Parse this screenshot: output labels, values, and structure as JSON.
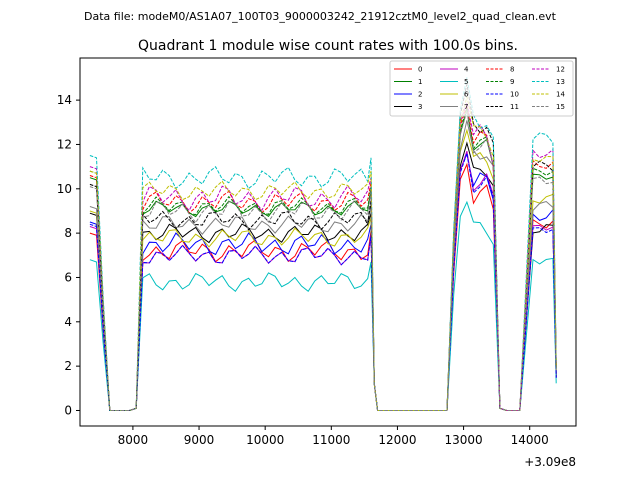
{
  "chart_data": {
    "type": "line",
    "suptitle": "Data file: modeM0/AS1A07_100T03_9000003242_21912cztM0_level2_quad_clean.evt",
    "title": "Quadrant 1 module wise count rates with 100.0s bins.",
    "xlabel": "",
    "ylabel": "",
    "x_offset_label": "+3.09e8",
    "xlim": [
      7200,
      14700
    ],
    "ylim": [
      -0.7,
      15.9
    ],
    "x_ticks": [
      8000,
      9000,
      10000,
      11000,
      12000,
      13000,
      14000
    ],
    "y_ticks": [
      0,
      2,
      4,
      6,
      8,
      10,
      12,
      14
    ],
    "grid": false,
    "legend_position": "top-right",
    "legend_columns": 4,
    "x": [
      7350,
      7450,
      7550,
      7650,
      7750,
      7850,
      7950,
      8050,
      8150,
      8250,
      8350,
      8450,
      8550,
      8650,
      8750,
      8850,
      8950,
      9050,
      9150,
      9250,
      9350,
      9450,
      9550,
      9650,
      9750,
      9850,
      9950,
      10050,
      10150,
      10250,
      10350,
      10450,
      10550,
      10650,
      10750,
      10850,
      10950,
      11050,
      11150,
      11250,
      11350,
      11450,
      11550,
      11600,
      11650,
      11700,
      11750,
      11850,
      11950,
      12050,
      12150,
      12250,
      12350,
      12450,
      12550,
      12650,
      12750,
      12850,
      12950,
      13050,
      13150,
      13250,
      13350,
      13450,
      13550,
      13650,
      13750,
      13850,
      13950,
      14050,
      14150,
      14250,
      14350,
      14400
    ],
    "series": [
      {
        "name": "0",
        "color": "#ff0000",
        "dash": "solid",
        "level": 7.2,
        "amp": 0.35,
        "start": 8.0,
        "peak": 11.2,
        "end": 8.5
      },
      {
        "name": "1",
        "color": "#008000",
        "dash": "solid",
        "level": 9.1,
        "amp": 0.25,
        "start": 10.5,
        "peak": 13.5,
        "end": 10.5
      },
      {
        "name": "2",
        "color": "#0000ff",
        "dash": "solid",
        "level": 7.5,
        "amp": 0.35,
        "start": 8.5,
        "peak": 11.8,
        "end": 8.8
      },
      {
        "name": "3",
        "color": "#000000",
        "dash": "solid",
        "level": 8.0,
        "amp": 0.3,
        "start": 8.9,
        "peak": 12.2,
        "end": 8.2
      },
      {
        "name": "4",
        "color": "#bf00bf",
        "dash": "solid",
        "level": 7.0,
        "amp": 0.3,
        "start": 8.3,
        "peak": 11.7,
        "end": 8.3
      },
      {
        "name": "5",
        "color": "#00bfbf",
        "dash": "solid",
        "level": 5.8,
        "amp": 0.3,
        "start": 6.8,
        "peak": 9.5,
        "end": 6.8
      },
      {
        "name": "6",
        "color": "#bfbf00",
        "dash": "solid",
        "level": 7.8,
        "amp": 0.3,
        "start": 9.0,
        "peak": 12.8,
        "end": 9.5
      },
      {
        "name": "7",
        "color": "#808080",
        "dash": "solid",
        "level": 8.4,
        "amp": 0.3,
        "start": 9.2,
        "peak": 13.0,
        "end": 9.2
      },
      {
        "name": "8",
        "color": "#ff0000",
        "dash": "dashed",
        "level": 9.4,
        "amp": 0.35,
        "start": 10.6,
        "peak": 13.8,
        "end": 11.0
      },
      {
        "name": "9",
        "color": "#008000",
        "dash": "dashed",
        "level": 9.2,
        "amp": 0.3,
        "start": 10.8,
        "peak": 13.6,
        "end": 10.7
      },
      {
        "name": "10",
        "color": "#0000ff",
        "dash": "dashed",
        "level": 7.0,
        "amp": 0.3,
        "start": 8.4,
        "peak": 11.6,
        "end": 8.2
      },
      {
        "name": "11",
        "color": "#000000",
        "dash": "dashed",
        "level": 8.6,
        "amp": 0.3,
        "start": 10.2,
        "peak": 14.5,
        "end": 11.0
      },
      {
        "name": "12",
        "color": "#bf00bf",
        "dash": "dashed",
        "level": 9.6,
        "amp": 0.4,
        "start": 11.0,
        "peak": 14.0,
        "end": 11.5
      },
      {
        "name": "13",
        "color": "#00bfbf",
        "dash": "dashed",
        "level": 10.5,
        "amp": 0.35,
        "start": 11.5,
        "peak": 14.8,
        "end": 12.3
      },
      {
        "name": "14",
        "color": "#bfbf00",
        "dash": "dashed",
        "level": 9.9,
        "amp": 0.3,
        "start": 10.8,
        "peak": 14.2,
        "end": 11.3
      },
      {
        "name": "15",
        "color": "#808080",
        "dash": "dashed",
        "level": 9.0,
        "amp": 0.35,
        "start": 10.1,
        "peak": 13.4,
        "end": 10.3
      }
    ]
  }
}
